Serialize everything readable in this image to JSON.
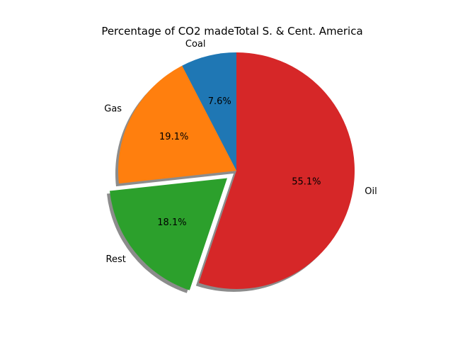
{
  "chart_data": {
    "type": "pie",
    "title": "Percentage of CO2 madeTotal S. & Cent. America",
    "slices": [
      {
        "label": "Coal",
        "value": 7.6,
        "pct_label": "7.6%",
        "color": "#1f77b4",
        "explode": false
      },
      {
        "label": "Gas",
        "value": 19.1,
        "pct_label": "19.1%",
        "color": "#ff7f0e",
        "explode": false
      },
      {
        "label": "Rest",
        "value": 18.1,
        "pct_label": "18.1%",
        "color": "#2ca02c",
        "explode": true
      },
      {
        "label": "Oil",
        "value": 55.1,
        "pct_label": "55.1%",
        "color": "#d62728",
        "explode": false
      }
    ],
    "start_angle_deg": 90,
    "direction": "counterclockwise",
    "shadow": true,
    "legend": "none"
  }
}
